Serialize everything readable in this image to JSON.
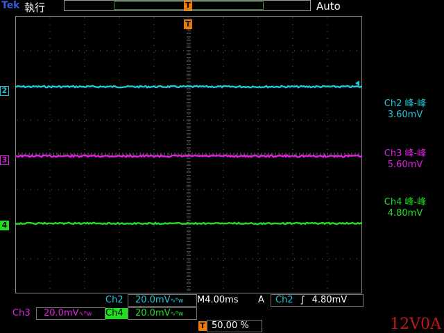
{
  "header": {
    "brand": "Tek",
    "run_state": "執行",
    "acquire_mode": "Auto",
    "trigger_marker": "T"
  },
  "channels": [
    {
      "id": "ch2",
      "marker": "2",
      "color": "#22c8d8"
    },
    {
      "id": "ch3",
      "marker": "3",
      "color": "#e020e0"
    },
    {
      "id": "ch4",
      "marker": "4",
      "color": "#22dd22"
    }
  ],
  "measurements": [
    {
      "label": "Ch2 峰-峰",
      "value": "3.60mV",
      "color": "#22c8d8"
    },
    {
      "label": "Ch3 峰-峰",
      "value": "5.60mV",
      "color": "#e020e0"
    },
    {
      "label": "Ch4 峰-峰",
      "value": "4.80mV",
      "color": "#22dd22"
    }
  ],
  "status": {
    "ch2_name": "Ch2",
    "ch2_scale": "20.0mV",
    "timebase": "M4.00ms",
    "trigger_mode": "A",
    "trigger_source": "Ch2",
    "trigger_slope": "∫",
    "trigger_level": "4.80mV",
    "ch3_name": "Ch3",
    "ch3_scale": "20.0mV",
    "ch4_name": "Ch4",
    "ch4_scale": "20.0mV",
    "trigger_position_marker": "T",
    "trigger_position": "50.00 %",
    "bw_symbol": "∿ᴮw"
  },
  "overlay_label": "12V0A"
}
